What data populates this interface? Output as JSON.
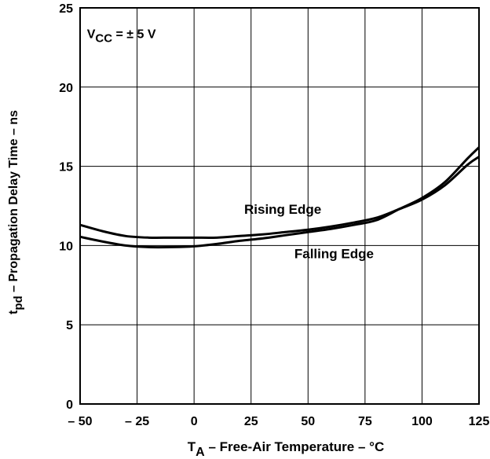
{
  "chart_data": {
    "type": "line",
    "xlim": [
      -50,
      125
    ],
    "ylim": [
      0,
      25
    ],
    "x_ticks": [
      -50,
      -25,
      0,
      25,
      50,
      75,
      100,
      125
    ],
    "x_tick_labels": [
      "– 50",
      "– 25",
      "0",
      "25",
      "50",
      "75",
      "100",
      "125"
    ],
    "y_ticks": [
      0,
      5,
      10,
      15,
      20,
      25
    ],
    "y_tick_labels": [
      "0",
      "5",
      "10",
      "15",
      "20",
      "25"
    ],
    "grid": true,
    "xlabel": {
      "main": "T",
      "sub": "A",
      "rest": " – Free-Air Temperature – °C"
    },
    "ylabel": {
      "main": "t",
      "sub": "pd",
      "rest": "  – Propagation Delay Time – ns"
    },
    "annotation": {
      "main": "V",
      "sub": "CC",
      "rest": " = ± 5 V"
    },
    "series": [
      {
        "name": "Rising Edge",
        "x": [
          -50,
          -40,
          -30,
          -20,
          -10,
          0,
          10,
          20,
          30,
          40,
          50,
          60,
          70,
          80,
          90,
          100,
          110,
          120,
          125
        ],
        "y": [
          11.3,
          10.9,
          10.6,
          10.5,
          10.5,
          10.5,
          10.5,
          10.6,
          10.7,
          10.85,
          11.0,
          11.2,
          11.45,
          11.75,
          12.3,
          12.9,
          13.8,
          15.1,
          15.6
        ]
      },
      {
        "name": "Falling Edge",
        "x": [
          -50,
          -40,
          -30,
          -20,
          -10,
          0,
          10,
          20,
          30,
          40,
          50,
          60,
          70,
          80,
          90,
          100,
          110,
          120,
          125
        ],
        "y": [
          10.55,
          10.25,
          10.0,
          9.9,
          9.9,
          9.95,
          10.1,
          10.3,
          10.45,
          10.65,
          10.85,
          11.05,
          11.3,
          11.6,
          12.3,
          13.0,
          14.0,
          15.5,
          16.2
        ]
      }
    ]
  }
}
